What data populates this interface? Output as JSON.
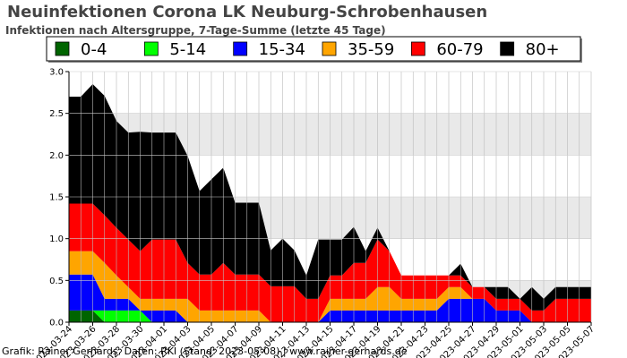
{
  "page": {
    "title": "Neuinfektionen Corona LK Neuburg-Schrobenhausen",
    "subtitle": "Infektionen nach Altersgruppe, 7-Tage-Summe (letzte 45 Tage)",
    "credit": "Grafik: Rainer Gerhards, Daten: RKI (Stand: 2023-05-08) | www.rainer-gerhards.de"
  },
  "chart_data": {
    "type": "area",
    "stacked": true,
    "ylim": [
      0,
      3.0
    ],
    "yticks": [
      "0.0",
      "0.5",
      "1.0",
      "1.5",
      "2.0",
      "2.5",
      "3.0"
    ],
    "x": [
      "2023-03-24",
      "2023-03-25",
      "2023-03-26",
      "2023-03-27",
      "2023-03-28",
      "2023-03-29",
      "2023-03-30",
      "2023-03-31",
      "2023-04-01",
      "2023-04-02",
      "2023-04-03",
      "2023-04-04",
      "2023-04-05",
      "2023-04-06",
      "2023-04-07",
      "2023-04-08",
      "2023-04-09",
      "2023-04-10",
      "2023-04-11",
      "2023-04-12",
      "2023-04-13",
      "2023-04-14",
      "2023-04-15",
      "2023-04-16",
      "2023-04-17",
      "2023-04-18",
      "2023-04-19",
      "2023-04-20",
      "2023-04-21",
      "2023-04-22",
      "2023-04-23",
      "2023-04-24",
      "2023-04-25",
      "2023-04-26",
      "2023-04-27",
      "2023-04-28",
      "2023-04-29",
      "2023-04-30",
      "2023-05-01",
      "2023-05-02",
      "2023-05-03",
      "2023-05-04",
      "2023-05-05",
      "2023-05-06",
      "2023-05-07"
    ],
    "xtick_labels": [
      "2023-03-24",
      "2023-03-26",
      "2023-03-28",
      "2023-03-30",
      "2023-04-01",
      "2023-04-03",
      "2023-04-05",
      "2023-04-07",
      "2023-04-09",
      "2023-04-11",
      "2023-04-13",
      "2023-04-15",
      "2023-04-17",
      "2023-04-19",
      "2023-04-21",
      "2023-04-23",
      "2023-04-25",
      "2023-04-27",
      "2023-04-29",
      "2023-05-01",
      "2023-05-03",
      "2023-05-05",
      "2023-05-07"
    ],
    "legend_position": "top",
    "grid": true,
    "series": [
      {
        "name": "0-4",
        "color": "#006400",
        "values": [
          0.14,
          0.14,
          0.14,
          0,
          0,
          0,
          0,
          0,
          0,
          0,
          0,
          0,
          0,
          0,
          0,
          0,
          0,
          0,
          0,
          0,
          0,
          0,
          0,
          0,
          0,
          0,
          0,
          0,
          0,
          0,
          0,
          0,
          0,
          0,
          0,
          0,
          0,
          0,
          0,
          0,
          0,
          0,
          0,
          0,
          0
        ]
      },
      {
        "name": "5-14",
        "color": "#00ff00",
        "values": [
          0,
          0,
          0,
          0.14,
          0.14,
          0.14,
          0.14,
          0,
          0,
          0,
          0,
          0,
          0,
          0,
          0,
          0,
          0,
          0,
          0,
          0,
          0,
          0,
          0,
          0,
          0,
          0,
          0,
          0,
          0,
          0,
          0,
          0,
          0,
          0,
          0,
          0,
          0,
          0,
          0,
          0,
          0,
          0,
          0,
          0,
          0
        ]
      },
      {
        "name": "15-34",
        "color": "#0000ff",
        "values": [
          0.43,
          0.43,
          0.43,
          0.14,
          0.14,
          0.14,
          0,
          0.14,
          0.14,
          0.14,
          0,
          0,
          0,
          0,
          0,
          0,
          0,
          0,
          0,
          0,
          0,
          0,
          0.14,
          0.14,
          0.14,
          0.14,
          0.14,
          0.14,
          0.14,
          0.14,
          0.14,
          0.14,
          0.28,
          0.28,
          0.28,
          0.28,
          0.14,
          0.14,
          0.14,
          0,
          0,
          0,
          0,
          0,
          0
        ]
      },
      {
        "name": "35-59",
        "color": "#ffa500",
        "values": [
          0.28,
          0.28,
          0.28,
          0.43,
          0.28,
          0.14,
          0.14,
          0.14,
          0.14,
          0.14,
          0.28,
          0.14,
          0.14,
          0.14,
          0.14,
          0.14,
          0.14,
          0,
          0,
          0,
          0,
          0,
          0.14,
          0.14,
          0.14,
          0.14,
          0.28,
          0.28,
          0.14,
          0.14,
          0.14,
          0.14,
          0.14,
          0.14,
          0,
          0,
          0,
          0,
          0,
          0,
          0,
          0,
          0,
          0,
          0
        ]
      },
      {
        "name": "60-79",
        "color": "#ff0000",
        "values": [
          0.57,
          0.57,
          0.57,
          0.57,
          0.57,
          0.57,
          0.57,
          0.71,
          0.71,
          0.71,
          0.43,
          0.43,
          0.43,
          0.57,
          0.43,
          0.43,
          0.43,
          0.43,
          0.43,
          0.43,
          0.28,
          0.28,
          0.28,
          0.28,
          0.43,
          0.43,
          0.57,
          0.43,
          0.28,
          0.28,
          0.28,
          0.28,
          0.14,
          0.14,
          0.14,
          0.14,
          0.14,
          0.14,
          0.14,
          0.14,
          0.14,
          0.28,
          0.28,
          0.28,
          0.28
        ]
      },
      {
        "name": "80+",
        "color": "#000000",
        "values": [
          1.28,
          1.28,
          1.43,
          1.43,
          1.28,
          1.28,
          1.43,
          1.28,
          1.28,
          1.28,
          1.28,
          1.0,
          1.14,
          1.14,
          0.86,
          0.86,
          0.86,
          0.43,
          0.57,
          0.43,
          0.28,
          0.71,
          0.43,
          0.43,
          0.43,
          0.14,
          0.14,
          0.0,
          0.0,
          0.0,
          0.0,
          0.0,
          0.0,
          0.14,
          0.0,
          0.0,
          0.14,
          0.14,
          0.0,
          0.28,
          0.14,
          0.14,
          0.14,
          0.14,
          0.14
        ]
      }
    ]
  }
}
